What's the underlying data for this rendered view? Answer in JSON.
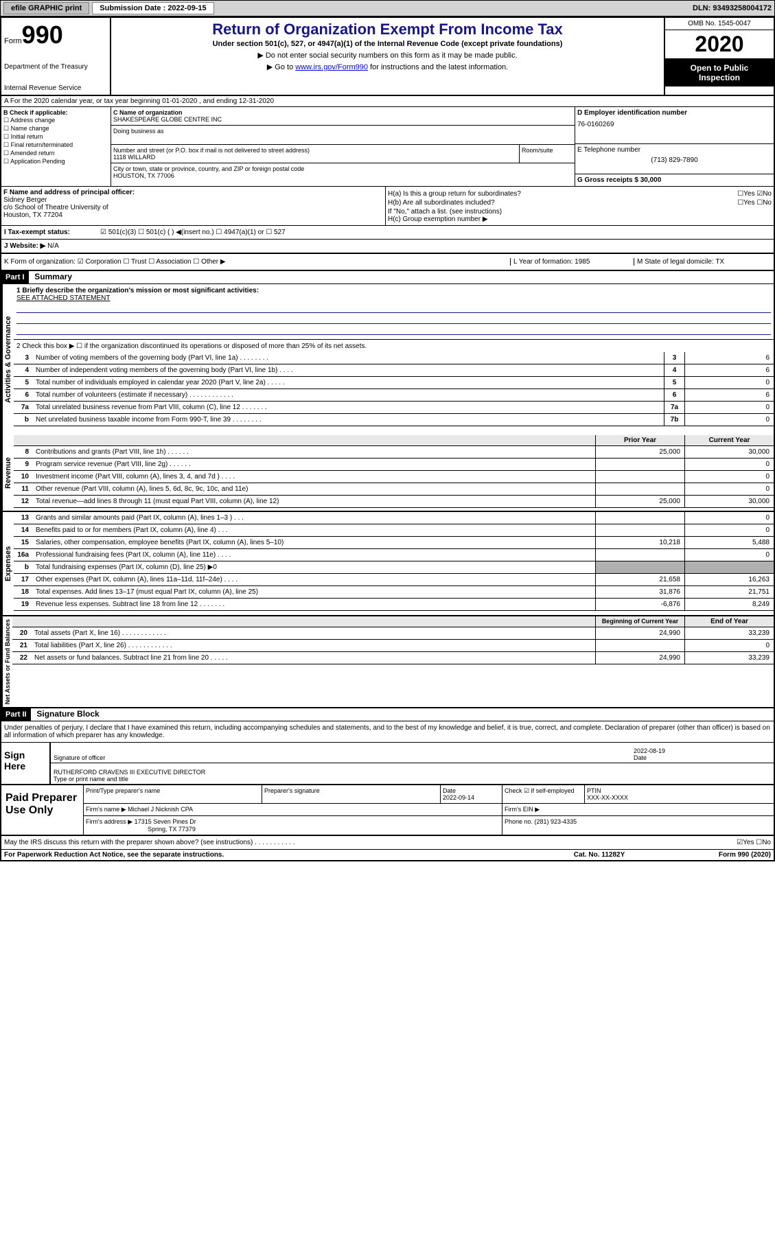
{
  "topbar": {
    "efile_label": "efile GRAPHIC print",
    "submission_label": "Submission Date : 2022-09-15",
    "dln": "DLN: 93493258004172"
  },
  "header": {
    "form_label": "Form",
    "form_number": "990",
    "dept1": "Department of the Treasury",
    "dept2": "Internal Revenue Service",
    "title": "Return of Organization Exempt From Income Tax",
    "subtitle": "Under section 501(c), 527, or 4947(a)(1) of the Internal Revenue Code (except private foundations)",
    "note1": "▶ Do not enter social security numbers on this form as it may be made public.",
    "note2_pre": "▶ Go to ",
    "note2_link": "www.irs.gov/Form990",
    "note2_post": " for instructions and the latest information.",
    "omb": "OMB No. 1545-0047",
    "year": "2020",
    "inspection": "Open to Public Inspection"
  },
  "section_a": "A For the 2020 calendar year, or tax year beginning 01-01-2020   , and ending 12-31-2020",
  "col_b": {
    "header": "B Check if applicable:",
    "items": [
      "☐ Address change",
      "☐ Name change",
      "☐ Initial return",
      "☐ Final return/terminated",
      "☐ Amended return",
      "☐ Application Pending"
    ]
  },
  "col_c": {
    "name_lbl": "C Name of organization",
    "name": "SHAKESPEARE GLOBE CENTRE INC",
    "dba_lbl": "Doing business as",
    "street_lbl": "Number and street (or P.O. box if mail is not delivered to street address)",
    "street": "1118 WILLARD",
    "room_lbl": "Room/suite",
    "city_lbl": "City or town, state or province, country, and ZIP or foreign postal code",
    "city": "HOUSTON, TX  77006"
  },
  "col_d": {
    "ein_lbl": "D Employer identification number",
    "ein": "76-0160269",
    "phone_lbl": "E Telephone number",
    "phone": "(713) 829-7890",
    "gross_lbl": "G Gross receipts $ 30,000"
  },
  "col_f": {
    "lbl": "F Name and address of principal officer:",
    "name": "Sidney Berger",
    "addr1": "c/o School of Theatre University of",
    "addr2": "Houston, TX  77204"
  },
  "col_h": {
    "ha": "H(a)  Is this a group return for subordinates?",
    "ha_ans": "☐Yes ☑No",
    "hb": "H(b)  Are all subordinates included?",
    "hb_ans": "☐Yes ☐No",
    "hb_note": "If \"No,\" attach a list. (see instructions)",
    "hc": "H(c)  Group exemption number ▶"
  },
  "tax_status": {
    "lbl": "I    Tax-exempt status:",
    "opts": "☑ 501(c)(3)    ☐  501(c) (  ) ◀(insert no.)    ☐ 4947(a)(1) or  ☐ 527"
  },
  "website": {
    "lbl": "J   Website: ▶",
    "val": "N/A"
  },
  "k_row": {
    "k": "K Form of organization:  ☑ Corporation  ☐ Trust  ☐ Association  ☐ Other ▶",
    "l": "L Year of formation: 1985",
    "m": "M State of legal domicile: TX"
  },
  "part1": {
    "header": "Part I",
    "title": "Summary",
    "mission_lbl": "1  Briefly describe the organization's mission or most significant activities:",
    "mission": "SEE ATTACHED STATEMENT",
    "line2": "2   Check this box ▶ ☐  if the organization discontinued its operations or disposed of more than 25% of its net assets."
  },
  "governance": {
    "label": "Activities & Governance",
    "rows": [
      {
        "n": "3",
        "t": "Number of voting members of the governing body (Part VI, line 1a)  .   .   .   .   .   .   .   .",
        "box": "3",
        "v": "6"
      },
      {
        "n": "4",
        "t": "Number of independent voting members of the governing body (Part VI, line 1b)   .   .   .   .",
        "box": "4",
        "v": "6"
      },
      {
        "n": "5",
        "t": "Total number of individuals employed in calendar year 2020 (Part V, line 2a)   .   .   .   .   .",
        "box": "5",
        "v": "0"
      },
      {
        "n": "6",
        "t": "Total number of volunteers (estimate if necessary)   .   .   .   .   .   .   .   .   .   .   .   .",
        "box": "6",
        "v": "6"
      },
      {
        "n": "7a",
        "t": "Total unrelated business revenue from Part VIII, column (C), line 12   .   .   .   .   .   .   .",
        "box": "7a",
        "v": "0"
      },
      {
        "n": "b",
        "t": "Net unrelated business taxable income from Form 990-T, line 39   .   .   .   .   .   .   .   .",
        "box": "7b",
        "v": "0"
      }
    ]
  },
  "revenue": {
    "label": "Revenue",
    "header_prior": "Prior Year",
    "header_current": "Current Year",
    "rows": [
      {
        "n": "8",
        "t": "Contributions and grants (Part VIII, line 1h)   .   .   .   .   .   .",
        "p": "25,000",
        "c": "30,000"
      },
      {
        "n": "9",
        "t": "Program service revenue (Part VIII, line 2g)   .   .   .   .   .   .",
        "p": "",
        "c": "0"
      },
      {
        "n": "10",
        "t": "Investment income (Part VIII, column (A), lines 3, 4, and 7d )   .   .   .   .",
        "p": "",
        "c": "0"
      },
      {
        "n": "11",
        "t": "Other revenue (Part VIII, column (A), lines 5, 6d, 8c, 9c, 10c, and 11e)",
        "p": "",
        "c": "0"
      },
      {
        "n": "12",
        "t": "Total revenue—add lines 8 through 11 (must equal Part VIII, column (A), line 12)",
        "p": "25,000",
        "c": "30,000"
      }
    ]
  },
  "expenses": {
    "label": "Expenses",
    "rows": [
      {
        "n": "13",
        "t": "Grants and similar amounts paid (Part IX, column (A), lines 1–3 )   .   .   .",
        "p": "",
        "c": "0"
      },
      {
        "n": "14",
        "t": "Benefits paid to or for members (Part IX, column (A), line 4)   .   .   .",
        "p": "",
        "c": "0"
      },
      {
        "n": "15",
        "t": "Salaries, other compensation, employee benefits (Part IX, column (A), lines 5–10)",
        "p": "10,218",
        "c": "5,488"
      },
      {
        "n": "16a",
        "t": "Professional fundraising fees (Part IX, column (A), line 11e)   .   .   .   .",
        "p": "",
        "c": "0"
      },
      {
        "n": "b",
        "t": "Total fundraising expenses (Part IX, column (D), line 25) ▶0",
        "p": "shaded",
        "c": "shaded"
      },
      {
        "n": "17",
        "t": "Other expenses (Part IX, column (A), lines 11a–11d, 11f–24e)   .   .   .   .",
        "p": "21,658",
        "c": "16,263"
      },
      {
        "n": "18",
        "t": "Total expenses. Add lines 13–17 (must equal Part IX, column (A), line 25)",
        "p": "31,876",
        "c": "21,751"
      },
      {
        "n": "19",
        "t": "Revenue less expenses. Subtract line 18 from line 12   .   .   .   .   .   .   .",
        "p": "-6,876",
        "c": "8,249"
      }
    ]
  },
  "netassets": {
    "label": "Net Assets or Fund Balances",
    "header_begin": "Beginning of Current Year",
    "header_end": "End of Year",
    "rows": [
      {
        "n": "20",
        "t": "Total assets (Part X, line 16)   .   .   .   .   .   .   .   .   .   .   .   .",
        "p": "24,990",
        "c": "33,239"
      },
      {
        "n": "21",
        "t": "Total liabilities (Part X, line 26)   .   .   .   .   .   .   .   .   .   .   .   .",
        "p": "",
        "c": "0"
      },
      {
        "n": "22",
        "t": "Net assets or fund balances. Subtract line 21 from line 20   .   .   .   .   .",
        "p": "24,990",
        "c": "33,239"
      }
    ]
  },
  "part2": {
    "header": "Part II",
    "title": "Signature Block",
    "penalty": "Under penalties of perjury, I declare that I have examined this return, including accompanying schedules and statements, and to the best of my knowledge and belief, it is true, correct, and complete. Declaration of preparer (other than officer) is based on all information of which preparer has any knowledge."
  },
  "sign": {
    "left": "Sign Here",
    "sig_lbl": "Signature of officer",
    "date": "2022-08-19",
    "date_lbl": "Date",
    "name": "RUTHERFORD CRAVENS III  EXECUTIVE DIRECTOR",
    "name_lbl": "Type or print name and title"
  },
  "preparer": {
    "left": "Paid Preparer Use Only",
    "h1": "Print/Type preparer's name",
    "h2": "Preparer's signature",
    "h3": "Date",
    "h3v": "2022-09-14",
    "h4": "Check ☑ if self-employed",
    "h5": "PTIN",
    "h5v": "XXX-XX-XXXX",
    "firm_lbl": "Firm's name    ▶",
    "firm": "Michael J Nicknish CPA",
    "ein_lbl": "Firm's EIN ▶",
    "addr_lbl": "Firm's address ▶",
    "addr1": "17315 Seven Pines Dr",
    "addr2": "Spring, TX  77379",
    "phone_lbl": "Phone no. (281) 923-4335"
  },
  "footer": {
    "discuss": "May the IRS discuss this return with the preparer shown above? (see instructions)   .   .   .   .   .   .   .   .   .   .   .",
    "discuss_ans": "☑Yes  ☐No",
    "paperwork": "For Paperwork Reduction Act Notice, see the separate instructions.",
    "catno": "Cat. No. 11282Y",
    "formref": "Form 990 (2020)"
  }
}
